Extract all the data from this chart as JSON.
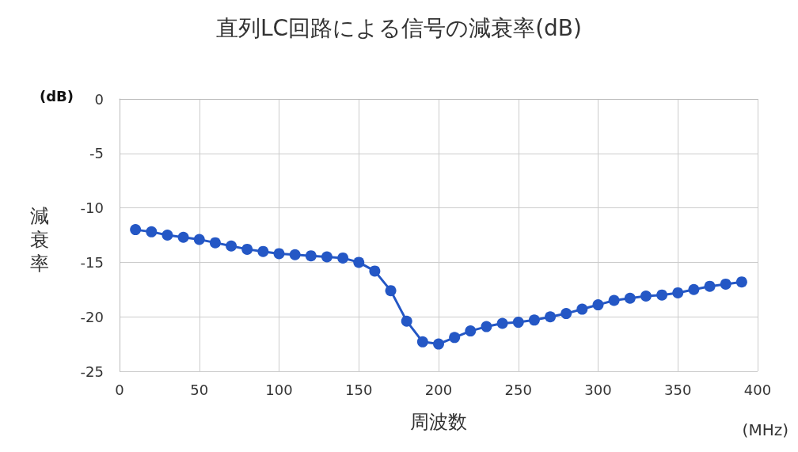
{
  "chart_data": {
    "type": "line",
    "title": "直列LC回路による信号の減衰率(dB)",
    "xlabel": "周波数",
    "ylabel": "減衰率",
    "annotations": [
      "(dB)",
      "(MHz)"
    ],
    "x": [
      10,
      20,
      30,
      40,
      50,
      60,
      70,
      80,
      90,
      100,
      110,
      120,
      130,
      140,
      150,
      160,
      170,
      180,
      190,
      200,
      210,
      220,
      230,
      240,
      250,
      260,
      270,
      280,
      290,
      300,
      310,
      320,
      330,
      340,
      350,
      360,
      370,
      380,
      390
    ],
    "series": [
      {
        "color": "#2457c5",
        "values": [
          -12.0,
          -12.2,
          -12.5,
          -12.7,
          -12.9,
          -13.2,
          -13.5,
          -13.8,
          -14.0,
          -14.2,
          -14.3,
          -14.4,
          -14.5,
          -14.6,
          -15.0,
          -15.8,
          -17.6,
          -20.4,
          -22.3,
          -22.5,
          -21.9,
          -21.3,
          -20.9,
          -20.6,
          -20.5,
          -20.3,
          -20.0,
          -19.7,
          -19.3,
          -18.9,
          -18.5,
          -18.3,
          -18.1,
          -18.0,
          -17.8,
          -17.5,
          -17.2,
          -17.0,
          -16.8
        ]
      }
    ],
    "xlim": [
      0,
      400
    ],
    "xticks": [
      0,
      50,
      100,
      150,
      200,
      250,
      300,
      350,
      400
    ],
    "ylim": [
      -25,
      0
    ],
    "yticks": [
      -25,
      -20,
      -15,
      -10,
      -5,
      0
    ],
    "grid": true,
    "marker": "circle",
    "line_style": "solid"
  }
}
